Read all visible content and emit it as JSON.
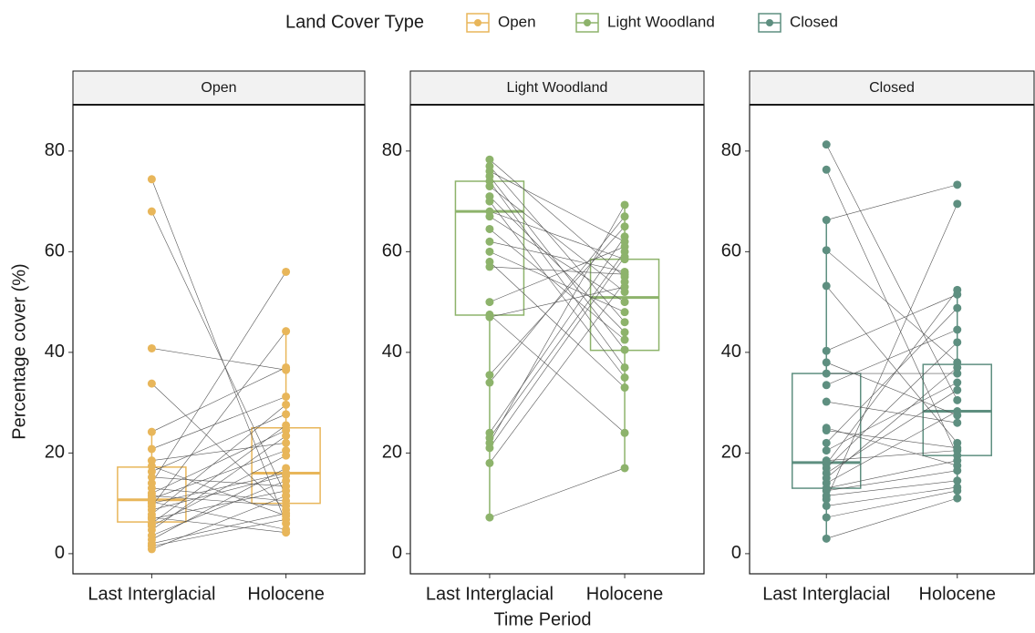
{
  "legend_title": "Land Cover Type",
  "x_label": "Time Period",
  "y_label": "Percentage cover (%)",
  "chart_data": [
    {
      "type": "box",
      "title": "Open",
      "color": "#e8b65a",
      "categories": [
        "Last Interglacial",
        "Holocene"
      ],
      "boxes": [
        {
          "whisker_low": 0.9,
          "q1": 6.3,
          "median": 10.7,
          "q3": 17.2,
          "whisker_high": 24.2
        },
        {
          "whisker_low": 4.2,
          "q1": 10,
          "median": 16,
          "q3": 25,
          "whisker_high": 44.2
        }
      ],
      "points": [
        [
          74.4,
          6
        ],
        [
          68,
          11.5
        ],
        [
          40.8,
          36.5
        ],
        [
          33.8,
          8.7
        ],
        [
          24.2,
          37
        ],
        [
          20.8,
          31.2
        ],
        [
          18.5,
          22
        ],
        [
          17.4,
          7.5
        ],
        [
          16.3,
          27.7
        ],
        [
          15.2,
          13.4
        ],
        [
          14,
          56
        ],
        [
          13,
          10.5
        ],
        [
          12,
          24.5
        ],
        [
          11.5,
          9.5
        ],
        [
          10.9,
          20.5
        ],
        [
          10.3,
          4.8
        ],
        [
          10,
          16
        ],
        [
          9.4,
          44.2
        ],
        [
          8.7,
          15.5
        ],
        [
          7.8,
          29.6
        ],
        [
          6.9,
          12.5
        ],
        [
          6,
          25.5
        ],
        [
          5.5,
          19.5
        ],
        [
          4.7,
          23.4
        ],
        [
          3.6,
          14.5
        ],
        [
          2.8,
          17
        ],
        [
          2,
          8
        ],
        [
          1.5,
          6.8
        ],
        [
          0.9,
          11.5
        ],
        [
          7.2,
          4.2
        ]
      ],
      "ylim": [
        -4,
        89.2
      ],
      "yticks": [
        0,
        20,
        40,
        60,
        80
      ]
    },
    {
      "type": "box",
      "title": "Light Woodland",
      "color": "#8db36b",
      "categories": [
        "Last Interglacial",
        "Holocene"
      ],
      "boxes": [
        {
          "whisker_low": 7.2,
          "q1": 47.4,
          "median": 68,
          "q3": 74,
          "whisker_high": 78.3
        },
        {
          "whisker_low": 17,
          "q1": 40.4,
          "median": 50.9,
          "q3": 58.5,
          "whisker_high": 69.3
        }
      ],
      "points": [
        [
          78.3,
          55
        ],
        [
          77,
          46
        ],
        [
          76,
          62
        ],
        [
          75,
          40.5
        ],
        [
          74,
          37
        ],
        [
          73,
          52
        ],
        [
          71,
          44
        ],
        [
          70,
          35
        ],
        [
          68,
          58.5
        ],
        [
          67,
          50
        ],
        [
          64.5,
          42.5
        ],
        [
          62,
          56
        ],
        [
          60,
          48
        ],
        [
          58,
          33
        ],
        [
          57,
          55.5
        ],
        [
          50,
          61
        ],
        [
          47.5,
          24
        ],
        [
          47,
          53
        ],
        [
          35.5,
          65
        ],
        [
          34,
          67
        ],
        [
          24,
          63
        ],
        [
          23,
          60
        ],
        [
          22,
          69.3
        ],
        [
          21,
          59
        ],
        [
          18,
          54
        ],
        [
          7.2,
          17
        ]
      ],
      "ylim": [
        -4,
        89.2
      ],
      "yticks": [
        0,
        20,
        40,
        60,
        80
      ]
    },
    {
      "type": "box",
      "title": "Closed",
      "color": "#5e8f80",
      "categories": [
        "Last Interglacial",
        "Holocene"
      ],
      "boxes": [
        {
          "whisker_low": 3,
          "q1": 13,
          "median": 18.1,
          "q3": 35.8,
          "whisker_high": 66.3
        },
        {
          "whisker_low": 11,
          "q1": 19.5,
          "median": 28.3,
          "q3": 37.6,
          "whisker_high": 52.4
        }
      ],
      "points": [
        [
          81.3,
          30.5
        ],
        [
          76.3,
          19.5
        ],
        [
          66.3,
          73.3
        ],
        [
          60.3,
          38
        ],
        [
          53.2,
          22
        ],
        [
          40.3,
          51.5
        ],
        [
          38,
          27.5
        ],
        [
          35.8,
          35.8
        ],
        [
          33.5,
          44.5
        ],
        [
          30.2,
          26
        ],
        [
          25,
          17.5
        ],
        [
          24.5,
          21
        ],
        [
          22,
          48.8
        ],
        [
          20.5,
          34
        ],
        [
          18.5,
          20.5
        ],
        [
          17.8,
          52.4
        ],
        [
          17,
          42
        ],
        [
          16,
          32.5
        ],
        [
          15,
          37
        ],
        [
          14,
          28.3
        ],
        [
          13,
          18.5
        ],
        [
          12.5,
          16.5
        ],
        [
          11.5,
          14.5
        ],
        [
          10.8,
          69.5
        ],
        [
          9.5,
          13.2
        ],
        [
          7.2,
          12.5
        ],
        [
          3,
          11
        ]
      ],
      "ylim": [
        -4,
        89.2
      ],
      "yticks": [
        0,
        20,
        40,
        60,
        80
      ]
    }
  ]
}
